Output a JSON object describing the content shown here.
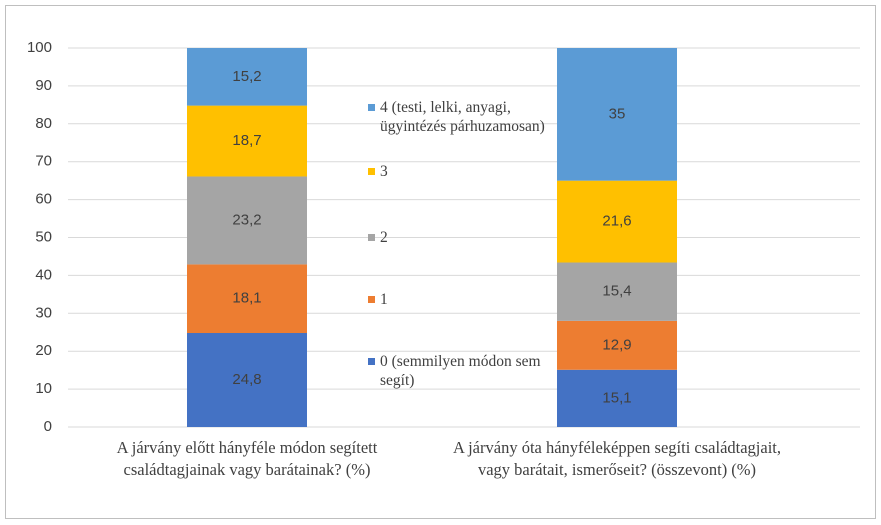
{
  "chart_data": {
    "type": "stacked_bar",
    "categories": [
      "A járvány előtt hányféle módon segített családtagjainak vagy barátainak? (%)",
      "A járvány óta hányféleképpen segíti családtagjait, vagy barátait, ismerőseit? (összevont) (%)"
    ],
    "series": [
      {
        "name": "0 (semmilyen módon sem segít)",
        "color": "#4472c4",
        "values": [
          24.8,
          15.1
        ],
        "value_labels": [
          "24,8",
          "15,1"
        ]
      },
      {
        "name": "1",
        "color": "#ed7d31",
        "values": [
          18.1,
          12.9
        ],
        "value_labels": [
          "18,1",
          "12,9"
        ]
      },
      {
        "name": "2",
        "color": "#a5a5a5",
        "values": [
          23.2,
          15.4
        ],
        "value_labels": [
          "23,2",
          "15,4"
        ]
      },
      {
        "name": "3",
        "color": "#ffc000",
        "values": [
          18.7,
          21.6
        ],
        "value_labels": [
          "18,7",
          "21,6"
        ]
      },
      {
        "name": "4 (testi, lelki, anyagi, ügyintézés párhuzamosan)",
        "color": "#5b9bd5",
        "values": [
          15.2,
          35
        ],
        "value_labels": [
          "15,2",
          "35"
        ]
      }
    ],
    "ylim": [
      0,
      100
    ],
    "yticks": [
      0,
      10,
      20,
      30,
      40,
      50,
      60,
      70,
      80,
      90,
      100
    ],
    "grid": true,
    "legend": "center"
  }
}
